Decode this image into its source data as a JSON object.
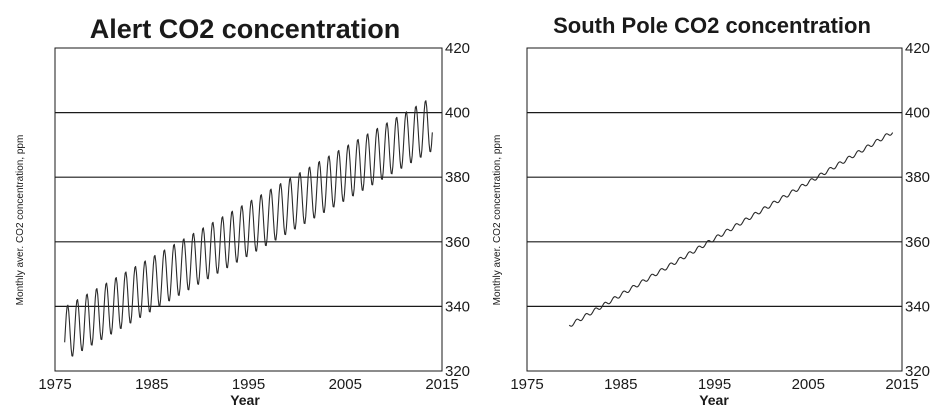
{
  "chart_data": [
    {
      "type": "line",
      "title": "Alert CO2 concentration",
      "xlabel": "Year",
      "ylabel": "Monthly aver. CO2 concentration, ppm",
      "xlim": [
        1975,
        2015
      ],
      "ylim": [
        320,
        420
      ],
      "x_ticks": [
        "1975",
        "1985",
        "1995",
        "2005",
        "2015"
      ],
      "y_ticks": [
        "320",
        "340",
        "360",
        "380",
        "400",
        "420"
      ],
      "grid": "horizontal",
      "series": [
        {
          "x_start": 1976.0,
          "x_end": 2014.0,
          "trend_start": 331.5,
          "trend_end": 396.5,
          "seasonal_amplitude": 8.5,
          "monthly_points": 457
        }
      ]
    },
    {
      "type": "line",
      "title": "South Pole CO2 concentration",
      "xlabel": "Year",
      "ylabel": "Monthly aver. CO2 concentration, ppm",
      "xlim": [
        1975,
        2015
      ],
      "ylim": [
        320,
        420
      ],
      "x_ticks": [
        "1975",
        "1985",
        "1995",
        "2005",
        "2015"
      ],
      "y_ticks": [
        "320",
        "340",
        "360",
        "380",
        "400",
        "420"
      ],
      "grid": "horizontal",
      "series": [
        {
          "x_start": 1979.5,
          "x_end": 2014.0,
          "trend_start": 334.0,
          "trend_end": 394.0,
          "seasonal_amplitude": 0.6,
          "monthly_points": 415
        }
      ]
    }
  ]
}
